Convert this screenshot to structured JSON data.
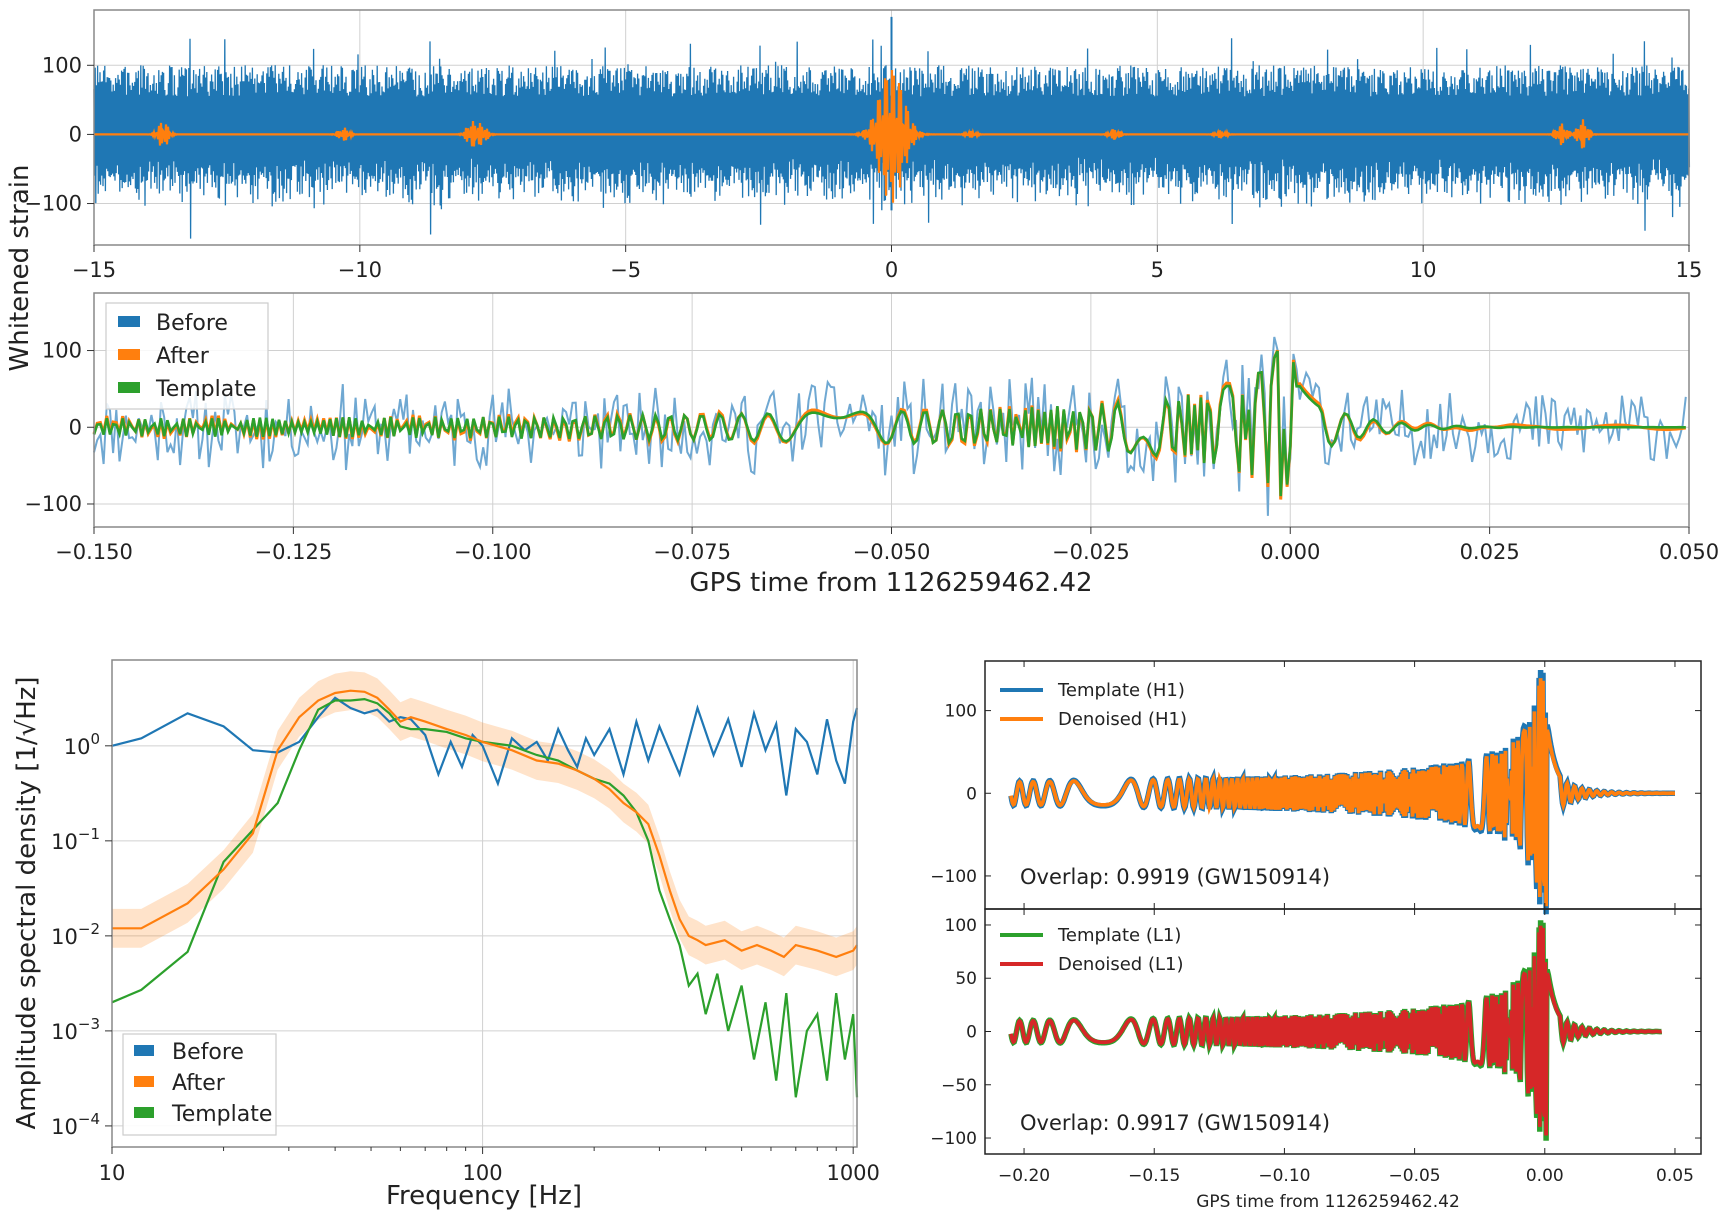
{
  "colors": {
    "blue": "#1f77b4",
    "orange": "#ff7f0e",
    "green": "#2ca02c",
    "red": "#d62728",
    "light_blue": "#6fa8d2"
  },
  "shared_ylabel": "Whitened strain",
  "chart_data": [
    {
      "id": "strain-full",
      "type": "line",
      "xlim": [
        -15,
        15
      ],
      "ylim": [
        -160,
        180
      ],
      "xticks": [
        -15,
        -10,
        -5,
        0,
        5,
        10,
        15
      ],
      "xtick_labels": [
        "−15",
        "−10",
        "−5",
        "0",
        "5",
        "10",
        "15"
      ],
      "yticks": [
        100,
        0,
        -100
      ],
      "ytick_labels": [
        "100",
        "0",
        "−100"
      ],
      "grid": true,
      "series": [
        {
          "name": "Before",
          "color": "#1f77b4",
          "kind": "noise-band",
          "amplitude": 100,
          "peak_x": 0,
          "peak_y": 170
        },
        {
          "name": "After",
          "color": "#ff7f0e",
          "kind": "bursts",
          "bursts": [
            [
              -13.7,
              20
            ],
            [
              -10.3,
              10
            ],
            [
              -7.9,
              18
            ],
            [
              -7.7,
              14
            ],
            [
              0,
              100
            ],
            [
              1.5,
              5
            ],
            [
              4.2,
              8
            ],
            [
              6.2,
              6
            ],
            [
              12.6,
              16
            ],
            [
              13.0,
              22
            ]
          ]
        }
      ]
    },
    {
      "id": "strain-zoom",
      "type": "line",
      "xlim": [
        -0.15,
        0.05
      ],
      "ylim": [
        -130,
        175
      ],
      "xticks": [
        -0.15,
        -0.125,
        -0.1,
        -0.075,
        -0.05,
        -0.025,
        0.0,
        0.025,
        0.05
      ],
      "xtick_labels": [
        "−0.150",
        "−0.125",
        "−0.100",
        "−0.075",
        "−0.050",
        "−0.025",
        "0.000",
        "0.025",
        "0.050"
      ],
      "yticks": [
        100,
        0,
        -100
      ],
      "ytick_labels": [
        "100",
        "0",
        "−100"
      ],
      "xlabel": "GPS time from 1126259462.42",
      "grid": true,
      "legend": {
        "position": "top-left",
        "entries": [
          "Before",
          "After",
          "Template"
        ]
      },
      "series": [
        {
          "name": "Before",
          "color": "#6fa8d2",
          "kind": "noisy"
        },
        {
          "name": "After",
          "color": "#ff7f0e",
          "kind": "chirp"
        },
        {
          "name": "Template",
          "color": "#2ca02c",
          "kind": "chirp"
        }
      ]
    },
    {
      "id": "asd",
      "type": "line",
      "xscale": "log",
      "yscale": "log",
      "xlim": [
        10,
        1024
      ],
      "ylim": [
        6e-05,
        8
      ],
      "xticks": [
        10,
        100,
        1000
      ],
      "xtick_labels": [
        "10",
        "100",
        "1000"
      ],
      "yticks": [
        1,
        0.1,
        0.01,
        0.001,
        0.0001
      ],
      "ytick_labels": [
        [
          "10",
          "0"
        ],
        [
          "10",
          "−1"
        ],
        [
          "10",
          "−2"
        ],
        [
          "10",
          "−3"
        ],
        [
          "10",
          "−4"
        ]
      ],
      "xlabel": "Frequency [Hz]",
      "ylabel": "Amplitude spectral density [1/√Hz]",
      "grid": true,
      "legend": {
        "position": "bottom-left",
        "entries": [
          "Before",
          "After",
          "Template"
        ]
      },
      "series": [
        {
          "name": "Before",
          "color": "#1f77b4",
          "x": [
            10,
            12,
            16,
            20,
            24,
            28,
            32,
            36,
            40,
            44,
            48,
            52,
            56,
            60,
            64,
            70,
            76,
            82,
            88,
            94,
            100,
            110,
            120,
            130,
            140,
            150,
            160,
            170,
            180,
            190,
            200,
            220,
            240,
            260,
            280,
            300,
            340,
            380,
            420,
            460,
            500,
            540,
            580,
            620,
            660,
            700,
            750,
            800,
            850,
            900,
            950,
            1000,
            1024
          ],
          "y": [
            1.0,
            1.2,
            2.2,
            1.6,
            0.9,
            0.85,
            1.1,
            2.0,
            3.2,
            2.5,
            2.2,
            2.4,
            1.8,
            2.0,
            1.9,
            1.3,
            0.5,
            1.1,
            0.6,
            1.3,
            1.0,
            0.4,
            1.2,
            0.9,
            1.1,
            0.7,
            1.5,
            0.9,
            0.6,
            1.2,
            0.8,
            1.5,
            0.5,
            1.8,
            0.7,
            1.6,
            0.5,
            2.5,
            0.8,
            1.9,
            0.6,
            2.2,
            0.9,
            1.7,
            0.3,
            1.5,
            1.1,
            0.5,
            1.9,
            0.7,
            0.4,
            1.8,
            2.5
          ]
        },
        {
          "name": "After",
          "color": "#ff7f0e",
          "x": [
            10,
            12,
            16,
            20,
            24,
            28,
            32,
            36,
            40,
            44,
            48,
            52,
            56,
            60,
            64,
            70,
            80,
            90,
            100,
            120,
            140,
            160,
            180,
            200,
            220,
            240,
            260,
            280,
            300,
            320,
            340,
            360,
            380,
            400,
            450,
            500,
            550,
            600,
            650,
            700,
            800,
            900,
            1000,
            1024
          ],
          "y": [
            0.012,
            0.012,
            0.022,
            0.05,
            0.12,
            0.9,
            2.0,
            3.0,
            3.6,
            3.8,
            3.7,
            3.2,
            2.4,
            1.8,
            2.0,
            1.8,
            1.5,
            1.3,
            1.1,
            0.9,
            0.7,
            0.65,
            0.55,
            0.45,
            0.35,
            0.25,
            0.2,
            0.15,
            0.07,
            0.03,
            0.015,
            0.01,
            0.009,
            0.008,
            0.009,
            0.007,
            0.008,
            0.007,
            0.006,
            0.008,
            0.007,
            0.006,
            0.007,
            0.008
          ]
        },
        {
          "name": "Template",
          "color": "#2ca02c",
          "x": [
            10,
            12,
            16,
            20,
            24,
            28,
            32,
            36,
            40,
            44,
            48,
            52,
            56,
            60,
            64,
            70,
            80,
            90,
            100,
            120,
            140,
            160,
            180,
            200,
            220,
            240,
            260,
            280,
            300,
            320,
            340,
            360,
            380,
            400,
            430,
            460,
            500,
            540,
            580,
            620,
            660,
            700,
            750,
            800,
            850,
            900,
            950,
            1000,
            1024
          ],
          "y": [
            0.002,
            0.0027,
            0.0068,
            0.06,
            0.13,
            0.25,
            0.9,
            2.4,
            3.0,
            3.0,
            3.1,
            2.8,
            2.2,
            1.6,
            1.5,
            1.5,
            1.4,
            1.2,
            1.1,
            1.0,
            0.8,
            0.7,
            0.55,
            0.45,
            0.4,
            0.3,
            0.2,
            0.1,
            0.03,
            0.015,
            0.008,
            0.003,
            0.004,
            0.0015,
            0.004,
            0.001,
            0.003,
            0.0005,
            0.002,
            0.0003,
            0.0025,
            0.0002,
            0.001,
            0.0015,
            0.0003,
            0.0025,
            0.0005,
            0.0015,
            0.0002
          ]
        }
      ]
    },
    {
      "id": "h1",
      "type": "line",
      "xlim": [
        -0.215,
        0.06
      ],
      "ylim": [
        -140,
        160
      ],
      "xticks": [
        -0.2,
        -0.15,
        -0.1,
        -0.05,
        0.0,
        0.05
      ],
      "yticks": [
        100,
        0,
        -100
      ],
      "ytick_labels": [
        "100",
        "0",
        "−100"
      ],
      "legend": {
        "position": "top-left",
        "entries": [
          "Template (H1)",
          "Denoised (H1)"
        ]
      },
      "annotation": "Overlap: 0.9919 (GW150914)",
      "series": [
        {
          "name": "Template (H1)",
          "color": "#1f77b4",
          "kind": "chirp",
          "peak": 150
        },
        {
          "name": "Denoised (H1)",
          "color": "#ff7f0e",
          "kind": "chirp",
          "peak": 140
        }
      ]
    },
    {
      "id": "l1",
      "type": "line",
      "xlim": [
        -0.215,
        0.06
      ],
      "ylim": [
        -115,
        115
      ],
      "xticks": [
        -0.2,
        -0.15,
        -0.1,
        -0.05,
        0.0,
        0.05
      ],
      "xtick_labels": [
        "−0.20",
        "−0.15",
        "−0.10",
        "−0.05",
        "0.00",
        "0.05"
      ],
      "yticks": [
        100,
        50,
        0,
        -50,
        -100
      ],
      "ytick_labels": [
        "100",
        "50",
        "0",
        "−50",
        "−100"
      ],
      "xlabel": "GPS time from 1126259462.42",
      "legend": {
        "position": "top-left",
        "entries": [
          "Template (L1)",
          "Denoised (L1)"
        ]
      },
      "annotation": "Overlap: 0.9917 (GW150914)",
      "series": [
        {
          "name": "Template (L1)",
          "color": "#2ca02c",
          "kind": "chirp",
          "peak": 105
        },
        {
          "name": "Denoised (L1)",
          "color": "#d62728",
          "kind": "chirp",
          "peak": 100
        }
      ]
    }
  ]
}
